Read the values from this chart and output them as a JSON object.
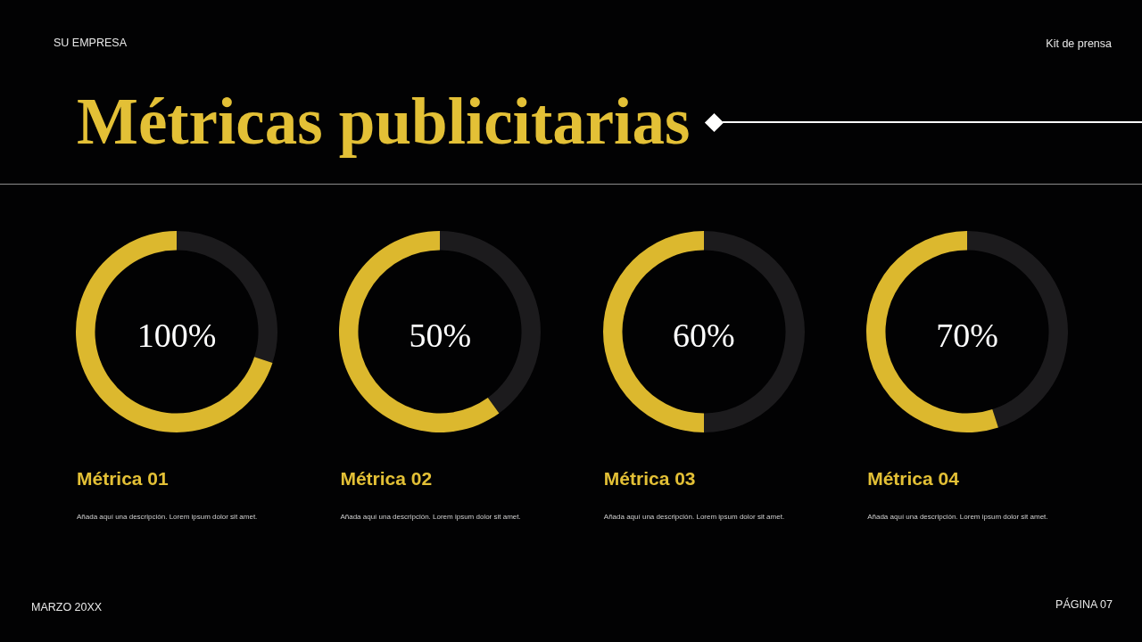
{
  "chart_data": [
    {
      "type": "other",
      "title": "Métricas publicitarias",
      "annotations": [
        "SU EMPRESA",
        "Kit de prensa",
        "MARZO 20XX",
        "PÁGINA 07"
      ]
    },
    {
      "type": "donut",
      "title": "Métrica 01",
      "subtitle": "Añada aquí una descripción. Lorem ipsum dolor sit amet.",
      "categories": [
        null,
        null
      ],
      "values": [
        30,
        70
      ],
      "colors": [
        "#1c1b1d",
        "#dcb82e"
      ],
      "annotations": [
        "100%"
      ]
    },
    {
      "type": "donut",
      "title": "Métrica 02",
      "subtitle": "Añada aquí una descripción. Lorem ipsum dolor sit amet.",
      "categories": [
        null,
        null
      ],
      "values": [
        40,
        60
      ],
      "colors": [
        "#1c1b1d",
        "#dcb82e"
      ],
      "annotations": [
        "50%"
      ]
    },
    {
      "type": "donut",
      "title": "Métrica 03",
      "subtitle": "Añada aquí una descripción. Lorem ipsum dolor sit amet.",
      "categories": [
        null,
        null
      ],
      "values": [
        50,
        50
      ],
      "colors": [
        "#1c1b1d",
        "#dcb82e"
      ],
      "annotations": [
        "60%"
      ]
    },
    {
      "type": "donut",
      "title": "Métrica 04",
      "subtitle": "Añada aquí una descripción. Lorem ipsum dolor sit amet.",
      "categories": [
        null,
        null
      ],
      "values": [
        45,
        55
      ],
      "colors": [
        "#1c1b1d",
        "#dcb82e"
      ],
      "annotations": [
        "70%"
      ]
    }
  ]
}
